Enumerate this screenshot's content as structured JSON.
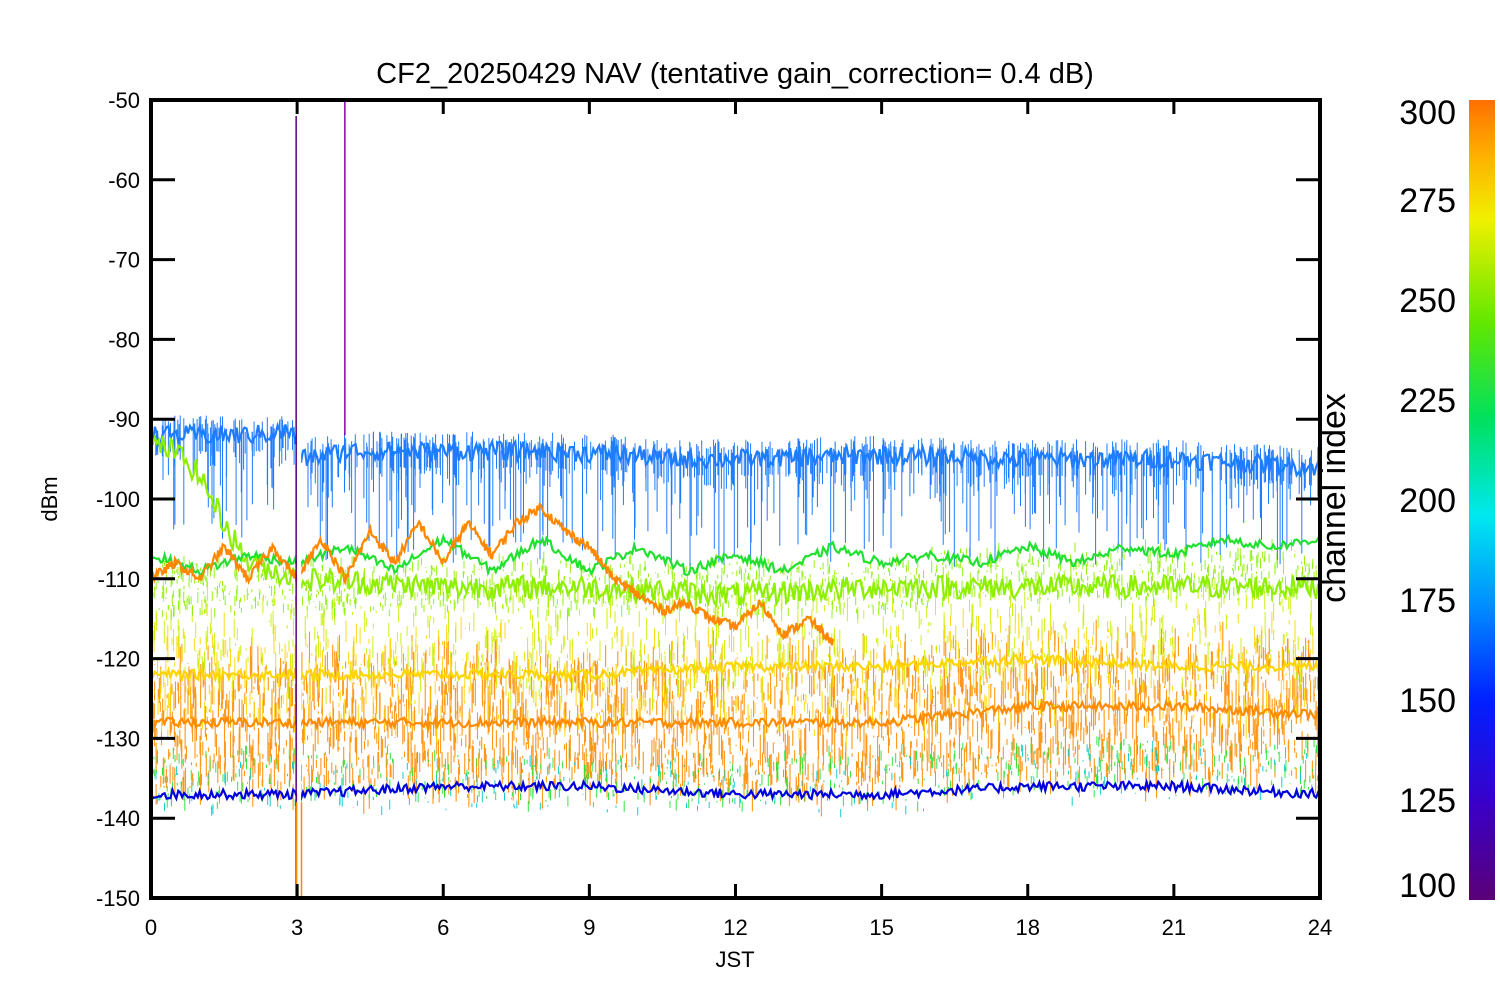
{
  "chart_data": {
    "type": "line",
    "title": "CF2_20250429 NAV (tentative gain_correction=  0.4 dB)",
    "xlabel": "JST",
    "ylabel": "dBm",
    "xlim": [
      0,
      24
    ],
    "ylim": [
      -150,
      -50
    ],
    "x_ticks": [
      0,
      3,
      6,
      9,
      12,
      15,
      18,
      21,
      24
    ],
    "x_tick_labels": [
      "0",
      "3",
      "6",
      "9",
      "12",
      "15",
      "18",
      "21",
      "24"
    ],
    "y_ticks": [
      -50,
      -60,
      -70,
      -80,
      -90,
      -100,
      -110,
      -120,
      -130,
      -140,
      -150
    ],
    "y_tick_labels": [
      "-50",
      "-60",
      "-70",
      "-80",
      "-90",
      "-100",
      "-110",
      "-120",
      "-130",
      "-140",
      "-150"
    ],
    "grid": false,
    "colorbar": {
      "label": "channel index",
      "range": [
        100,
        300
      ],
      "ticks": [
        100,
        125,
        150,
        175,
        200,
        225,
        250,
        275,
        300
      ],
      "tick_labels": [
        "100",
        "125",
        "150",
        "175",
        "200",
        "225",
        "250",
        "275",
        "300"
      ],
      "colormap": "rainbow (purple-blue-cyan-green-yellow-orange)"
    },
    "series": [
      {
        "channel": 153,
        "color": "#1e7cff",
        "x": [
          0,
          1,
          2,
          2.9,
          3.1,
          4,
          6,
          8,
          10,
          10.5,
          12,
          15,
          18,
          21,
          24
        ],
        "values": [
          -92,
          -92,
          -92,
          -91.5,
          -95,
          -94,
          -94,
          -94,
          -94.5,
          -95,
          -95,
          -94.5,
          -95,
          -95,
          -96
        ]
      },
      {
        "channel": 262,
        "color": "#8cf000",
        "x": [
          0,
          0.5,
          1,
          1.5,
          2,
          3,
          6,
          9,
          12,
          15,
          18,
          21,
          24
        ],
        "values": [
          -93,
          -94,
          -97,
          -103,
          -108,
          -110,
          -111,
          -111,
          -112,
          -111,
          -111,
          -111,
          -111
        ]
      },
      {
        "channel": 238,
        "color": "#22e030",
        "x": [
          0,
          1,
          2,
          3,
          4,
          5,
          6,
          7,
          8,
          9,
          10,
          11,
          12,
          13,
          14,
          15,
          16,
          17,
          18,
          19,
          20,
          21,
          22,
          23,
          24
        ],
        "values": [
          -107,
          -109,
          -107,
          -108,
          -106,
          -109,
          -105,
          -109,
          -105,
          -109,
          -106,
          -109,
          -107,
          -109,
          -106,
          -108,
          -107,
          -108,
          -106,
          -108,
          -106,
          -107,
          -105,
          -106,
          -105
        ]
      },
      {
        "channel": 290,
        "color": "#ff8800",
        "x": [
          0,
          0.5,
          1,
          1.5,
          2,
          2.5,
          3,
          3.5,
          4,
          4.5,
          5,
          5.5,
          6,
          6.5,
          7,
          7.5,
          8,
          8.5,
          9,
          9.5,
          10,
          10.5,
          11,
          11.5,
          12,
          12.5,
          13,
          13.5,
          14
        ],
        "values": [
          -110,
          -108,
          -110,
          -106,
          -110,
          -106,
          -110,
          -105,
          -110,
          -104,
          -108,
          -103,
          -108,
          -103,
          -107,
          -103,
          -101,
          -104,
          -106,
          -110,
          -112,
          -114,
          -113,
          -115,
          -116,
          -113,
          -117,
          -115,
          -118
        ]
      },
      {
        "channel": 295,
        "color": "#ff8c00",
        "x": [
          0,
          3,
          6,
          9,
          12,
          15,
          18,
          21,
          24
        ],
        "values": [
          -128,
          -128,
          -128,
          -128,
          -128,
          -128,
          -126,
          -126,
          -127
        ]
      },
      {
        "channel": 280,
        "color": "#ffd500",
        "x": [
          0,
          3,
          6,
          9,
          12,
          15,
          18,
          21,
          24
        ],
        "values": [
          -122,
          -122,
          -122,
          -122,
          -121,
          -121,
          -120,
          -121,
          -121
        ]
      },
      {
        "channel": 130,
        "color": "#0000dd",
        "x": [
          0,
          3,
          6,
          9,
          12,
          15,
          18,
          21,
          24
        ],
        "values": [
          -137,
          -137,
          -136,
          -136,
          -137,
          -137,
          -136,
          -136,
          -137
        ]
      }
    ]
  }
}
